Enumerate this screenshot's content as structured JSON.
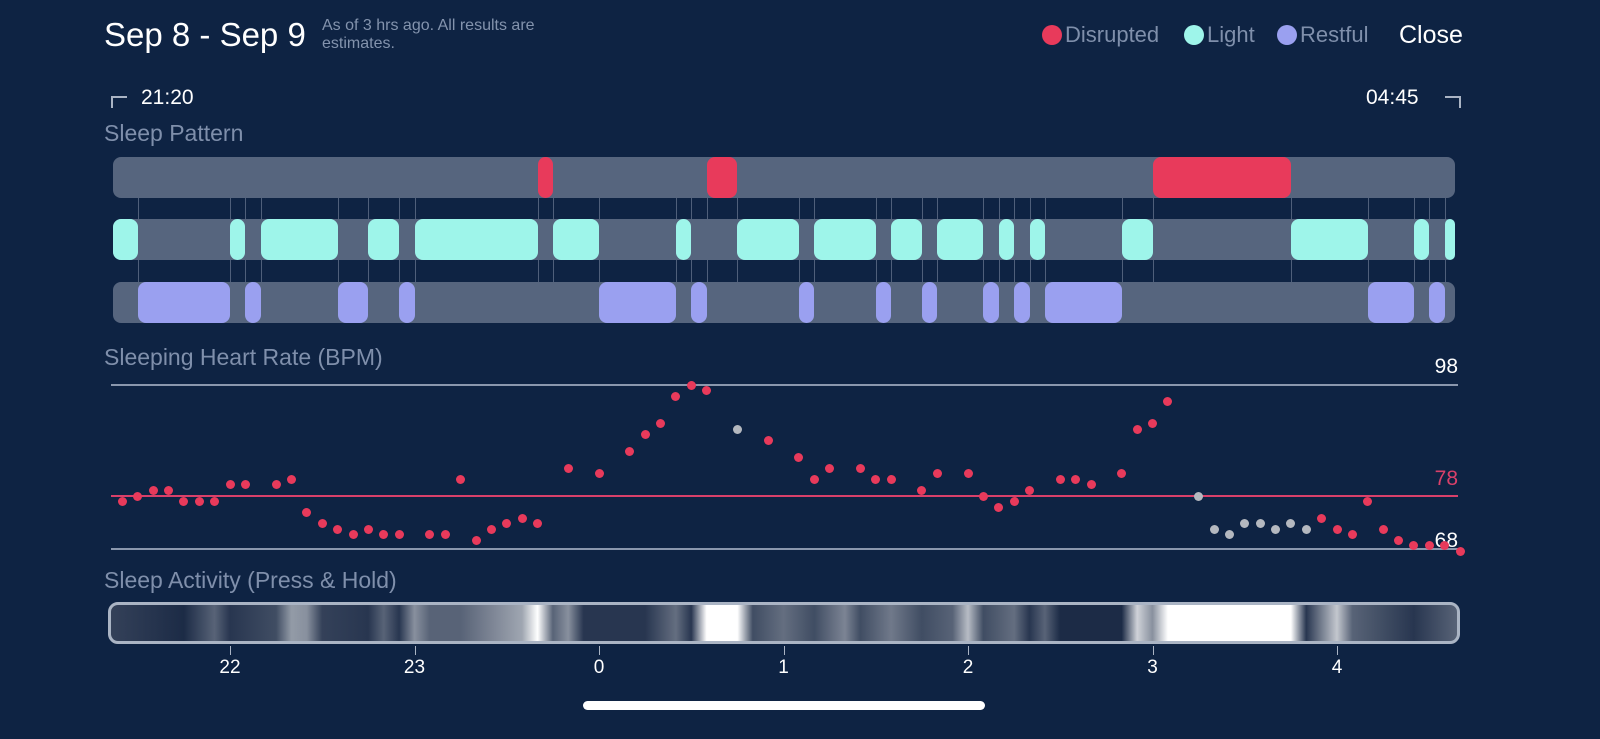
{
  "header": {
    "title": "Sep 8 - Sep 9",
    "subtitle": "As of 3 hrs ago. All results are estimates.",
    "close_label": "Close",
    "legend": [
      {
        "label": "Disrupted",
        "color": "#e83a5b"
      },
      {
        "label": "Light",
        "color": "#9ef5ea"
      },
      {
        "label": "Restful",
        "color": "#9aa0f0"
      }
    ]
  },
  "range": {
    "start": "21:20",
    "end": "04:45"
  },
  "sleep_pattern": {
    "title": "Sleep Pattern",
    "track_color": "#56657e",
    "disrupted": [
      [
        "23:40",
        "23:45"
      ],
      [
        "00:35",
        "00:45"
      ],
      [
        "03:00",
        "03:45"
      ]
    ],
    "light": [
      [
        "21:20",
        "21:30"
      ],
      [
        "22:00",
        "22:05"
      ],
      [
        "22:10",
        "22:35"
      ],
      [
        "22:45",
        "22:55"
      ],
      [
        "23:00",
        "23:40"
      ],
      [
        "23:45",
        "00:00"
      ],
      [
        "00:25",
        "00:30"
      ],
      [
        "00:45",
        "01:05"
      ],
      [
        "01:10",
        "01:30"
      ],
      [
        "01:35",
        "01:45"
      ],
      [
        "01:50",
        "02:05"
      ],
      [
        "02:10",
        "02:15"
      ],
      [
        "02:20",
        "02:25"
      ],
      [
        "02:50",
        "03:00"
      ],
      [
        "03:45",
        "04:10"
      ],
      [
        "04:25",
        "04:30"
      ],
      [
        "04:35",
        "04:40"
      ]
    ],
    "restful": [
      [
        "21:30",
        "22:00"
      ],
      [
        "22:05",
        "22:10"
      ],
      [
        "22:35",
        "22:45"
      ],
      [
        "22:55",
        "23:00"
      ],
      [
        "00:00",
        "00:25"
      ],
      [
        "00:30",
        "00:35"
      ],
      [
        "01:05",
        "01:10"
      ],
      [
        "01:30",
        "01:35"
      ],
      [
        "01:45",
        "01:50"
      ],
      [
        "02:05",
        "02:10"
      ],
      [
        "02:15",
        "02:20"
      ],
      [
        "02:25",
        "02:50"
      ],
      [
        "04:10",
        "04:25"
      ],
      [
        "04:30",
        "04:35"
      ]
    ]
  },
  "heart_rate": {
    "title": "Sleeping Heart Rate (BPM)",
    "max_label": "98",
    "avg_label": "78",
    "min_label": "68",
    "max": 98,
    "avg": 78,
    "min": 68,
    "dot_color": "#e83a5b",
    "excluded_color": "#b4b8bf",
    "points": [
      [
        "21:25",
        77
      ],
      [
        "21:30",
        78
      ],
      [
        "21:35",
        79
      ],
      [
        "21:40",
        79
      ],
      [
        "21:45",
        77
      ],
      [
        "21:50",
        77
      ],
      [
        "21:55",
        77
      ],
      [
        "22:00",
        80
      ],
      [
        "22:05",
        80
      ],
      [
        "22:15",
        80
      ],
      [
        "22:20",
        81
      ],
      [
        "22:25",
        75
      ],
      [
        "22:30",
        73
      ],
      [
        "22:35",
        72
      ],
      [
        "22:40",
        71
      ],
      [
        "22:45",
        72
      ],
      [
        "22:50",
        71
      ],
      [
        "22:55",
        71
      ],
      [
        "23:05",
        71
      ],
      [
        "23:10",
        71
      ],
      [
        "23:15",
        81
      ],
      [
        "23:20",
        70
      ],
      [
        "23:25",
        72
      ],
      [
        "23:30",
        73
      ],
      [
        "23:35",
        74
      ],
      [
        "23:40",
        73
      ],
      [
        "23:50",
        83
      ],
      [
        "00:00",
        82
      ],
      [
        "00:10",
        86
      ],
      [
        "00:15",
        89
      ],
      [
        "00:20",
        91
      ],
      [
        "00:25",
        96
      ],
      [
        "00:30",
        98
      ],
      [
        "00:35",
        97
      ],
      [
        "00:45",
        90,
        "excluded"
      ],
      [
        "00:55",
        88
      ],
      [
        "01:05",
        85
      ],
      [
        "01:10",
        81
      ],
      [
        "01:15",
        83
      ],
      [
        "01:25",
        83
      ],
      [
        "01:30",
        81
      ],
      [
        "01:35",
        81
      ],
      [
        "01:45",
        79
      ],
      [
        "01:50",
        82
      ],
      [
        "02:00",
        82
      ],
      [
        "02:05",
        78
      ],
      [
        "02:10",
        76
      ],
      [
        "02:15",
        77
      ],
      [
        "02:20",
        79
      ],
      [
        "02:30",
        81
      ],
      [
        "02:35",
        81
      ],
      [
        "02:40",
        80
      ],
      [
        "02:50",
        82
      ],
      [
        "02:55",
        90
      ],
      [
        "03:00",
        91
      ],
      [
        "03:05",
        95
      ],
      [
        "03:15",
        78,
        "excluded"
      ],
      [
        "03:20",
        72,
        "excluded"
      ],
      [
        "03:25",
        71,
        "excluded"
      ],
      [
        "03:30",
        73,
        "excluded"
      ],
      [
        "03:35",
        73,
        "excluded"
      ],
      [
        "03:40",
        72,
        "excluded"
      ],
      [
        "03:45",
        73,
        "excluded"
      ],
      [
        "03:50",
        72,
        "excluded"
      ],
      [
        "03:55",
        74
      ],
      [
        "04:00",
        72
      ],
      [
        "04:05",
        71
      ],
      [
        "04:10",
        77
      ],
      [
        "04:15",
        72
      ],
      [
        "04:20",
        70
      ],
      [
        "04:25",
        69
      ],
      [
        "04:30",
        69
      ],
      [
        "04:35",
        69
      ],
      [
        "04:40",
        68
      ]
    ]
  },
  "activity": {
    "title": "Sleep Activity (Press & Hold)",
    "levels": [
      [
        "21:20",
        0.15
      ],
      [
        "21:45",
        0.05
      ],
      [
        "21:55",
        0.3
      ],
      [
        "22:00",
        0.1
      ],
      [
        "22:15",
        0.2
      ],
      [
        "22:20",
        0.55
      ],
      [
        "22:25",
        0.5
      ],
      [
        "22:30",
        0.15
      ],
      [
        "22:45",
        0.1
      ],
      [
        "22:50",
        0.3
      ],
      [
        "22:55",
        0.1
      ],
      [
        "23:00",
        0.5
      ],
      [
        "23:05",
        0.3
      ],
      [
        "23:15",
        0.3
      ],
      [
        "23:25",
        0.45
      ],
      [
        "23:35",
        0.6
      ],
      [
        "23:40",
        1
      ],
      [
        "23:45",
        0.3
      ],
      [
        "23:50",
        0.5
      ],
      [
        "23:55",
        0.1
      ],
      [
        "00:15",
        0.1
      ],
      [
        "00:25",
        0.35
      ],
      [
        "00:30",
        0.1
      ],
      [
        "00:35",
        1
      ],
      [
        "00:45",
        1
      ],
      [
        "00:50",
        0.2
      ],
      [
        "01:00",
        0.35
      ],
      [
        "01:10",
        0.2
      ],
      [
        "01:20",
        0.45
      ],
      [
        "01:25",
        0.2
      ],
      [
        "01:35",
        0.4
      ],
      [
        "01:45",
        0.2
      ],
      [
        "01:55",
        0.3
      ],
      [
        "02:00",
        0.7
      ],
      [
        "02:05",
        0.2
      ],
      [
        "02:15",
        0.35
      ],
      [
        "02:20",
        0.1
      ],
      [
        "02:25",
        0.3
      ],
      [
        "02:30",
        0.05
      ],
      [
        "02:50",
        0.05
      ],
      [
        "02:55",
        0.8
      ],
      [
        "03:00",
        0.5
      ],
      [
        "03:05",
        1
      ],
      [
        "03:45",
        1
      ],
      [
        "03:50",
        0.1
      ],
      [
        "04:00",
        0.75
      ],
      [
        "04:05",
        0.3
      ],
      [
        "04:15",
        0.2
      ],
      [
        "04:25",
        0.1
      ],
      [
        "04:40",
        0.3
      ]
    ]
  },
  "axis": {
    "ticks": [
      "22",
      "23",
      "0",
      "1",
      "2",
      "3",
      "4"
    ]
  }
}
